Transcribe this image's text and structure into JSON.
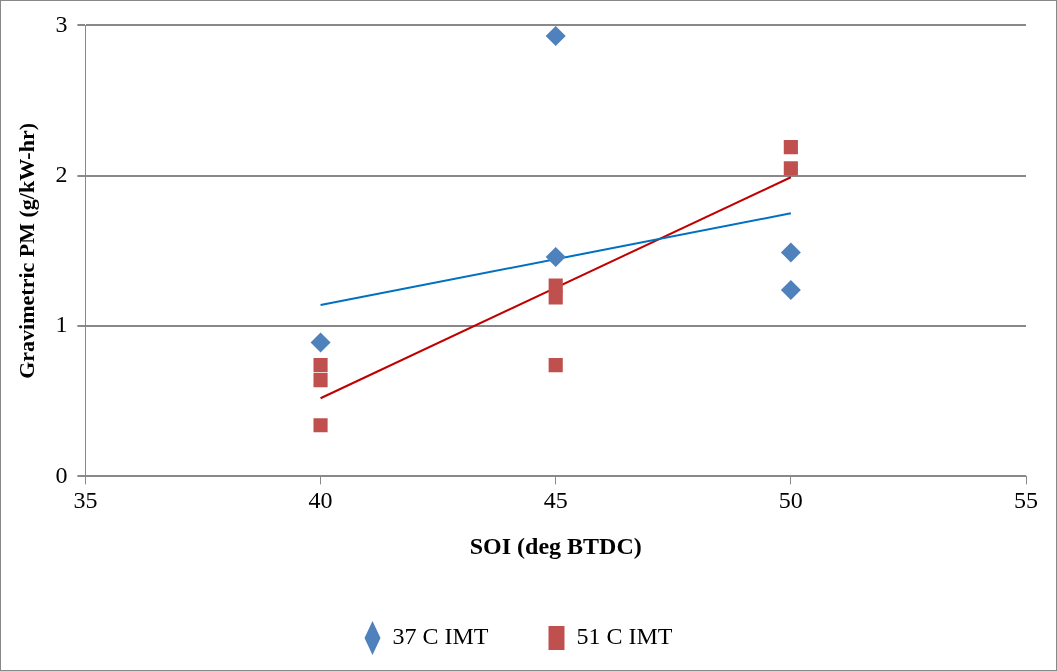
{
  "chart_data": {
    "type": "scatter",
    "xlabel": "SOI (deg BTDC)",
    "ylabel": "Gravimetric PM (g/kW-hr)",
    "xlim": [
      35,
      55
    ],
    "xticks": [
      35,
      40,
      45,
      50,
      55
    ],
    "ylim": [
      0,
      3
    ],
    "yticks": [
      0,
      1,
      2,
      3
    ],
    "grid": "y",
    "legend": "bottom",
    "series": [
      {
        "name": "37 C IMT",
        "color": "#4f81bd",
        "marker": "diamond",
        "x": [
          40,
          45,
          45,
          50,
          50
        ],
        "values": [
          0.89,
          2.93,
          1.46,
          1.49,
          1.24
        ]
      },
      {
        "name": "51 C IMT",
        "color": "#c0504d",
        "marker": "square",
        "x": [
          40,
          40,
          40,
          45,
          45,
          45,
          50,
          50
        ],
        "values": [
          0.74,
          0.64,
          0.34,
          1.27,
          1.19,
          0.74,
          2.19,
          2.05
        ]
      },
      {
        "type": "line",
        "color": "#0070c0",
        "marker": "none",
        "x": [
          40,
          50
        ],
        "values": [
          1.14,
          1.75
        ]
      },
      {
        "type": "line",
        "color": "#c00000",
        "marker": "none",
        "x": [
          40,
          50
        ],
        "values": [
          0.52,
          1.99
        ]
      }
    ]
  }
}
